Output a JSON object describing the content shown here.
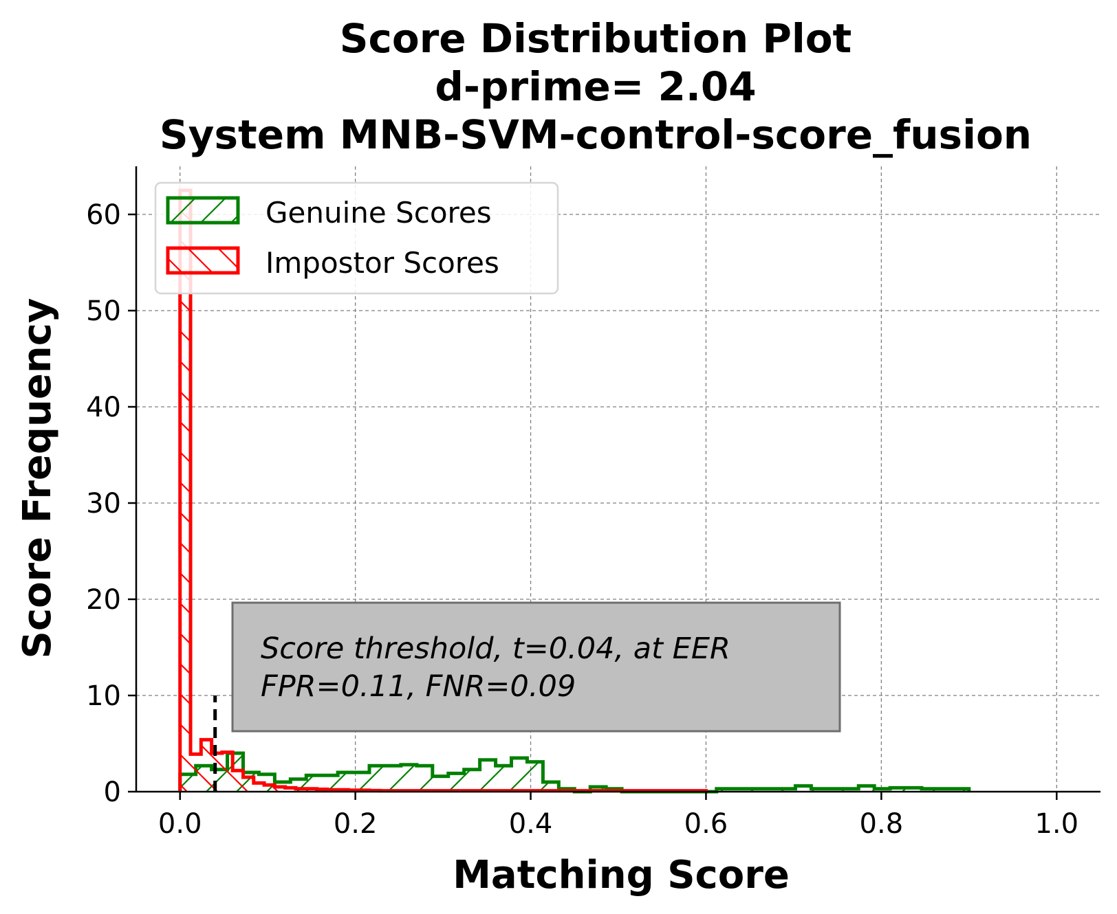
{
  "chart_data": {
    "type": "histogram",
    "title": [
      "Score Distribution Plot",
      "d-prime= 2.04",
      "System MNB-SVM-control-score_fusion"
    ],
    "xlabel": "Matching Score",
    "ylabel": "Score Frequency",
    "xlim": [
      -0.05,
      1.05
    ],
    "ylim": [
      0,
      65
    ],
    "xticks": [
      0.0,
      0.2,
      0.4,
      0.6,
      0.8,
      1.0
    ],
    "xtick_labels": [
      "0.0",
      "0.2",
      "0.4",
      "0.6",
      "0.8",
      "1.0"
    ],
    "yticks": [
      0,
      10,
      20,
      30,
      40,
      50,
      60
    ],
    "ytick_labels": [
      "0",
      "10",
      "20",
      "30",
      "40",
      "50",
      "60"
    ],
    "grid": true,
    "legend_position": "top-left",
    "series": [
      {
        "name": "Genuine Scores",
        "color": "#008000",
        "hatch": "forward-diagonal",
        "bin_edges": [
          0.0,
          0.018,
          0.036,
          0.054,
          0.072,
          0.09,
          0.108,
          0.126,
          0.144,
          0.162,
          0.18,
          0.198,
          0.216,
          0.234,
          0.252,
          0.27,
          0.288,
          0.306,
          0.324,
          0.342,
          0.36,
          0.378,
          0.396,
          0.414,
          0.432,
          0.45,
          0.468,
          0.486,
          0.504,
          0.522,
          0.54,
          0.558,
          0.576,
          0.594,
          0.612,
          0.63,
          0.648,
          0.666,
          0.684,
          0.702,
          0.72,
          0.738,
          0.756,
          0.774,
          0.792,
          0.81,
          0.828,
          0.846,
          0.864,
          0.882,
          0.9
        ],
        "values": [
          1.8,
          2.7,
          2.3,
          4.0,
          2.0,
          1.8,
          1.0,
          1.3,
          1.7,
          1.7,
          2.0,
          2.0,
          2.7,
          2.7,
          2.8,
          2.7,
          1.6,
          1.9,
          2.3,
          3.3,
          2.7,
          3.5,
          3.1,
          1.0,
          0.3,
          0.0,
          0.5,
          0.3,
          0.0,
          0.0,
          0.0,
          0.0,
          0.0,
          0.0,
          0.3,
          0.3,
          0.3,
          0.3,
          0.3,
          0.6,
          0.3,
          0.3,
          0.3,
          0.6,
          0.3,
          0.4,
          0.4,
          0.3,
          0.3,
          0.3
        ]
      },
      {
        "name": "Impostor Scores",
        "color": "#ff0000",
        "hatch": "back-diagonal",
        "bin_edges": [
          0.0,
          0.012,
          0.024,
          0.036,
          0.048,
          0.06,
          0.072,
          0.084,
          0.096,
          0.108,
          0.12,
          0.132,
          0.144,
          0.156,
          0.168,
          0.18,
          0.192,
          0.204,
          0.216,
          0.228,
          0.24,
          0.252,
          0.264,
          0.276,
          0.288,
          0.3,
          0.312,
          0.324,
          0.336,
          0.348,
          0.36,
          0.372,
          0.384,
          0.396,
          0.408,
          0.42,
          0.432,
          0.444,
          0.456,
          0.468,
          0.48,
          0.492,
          0.504,
          0.516,
          0.528,
          0.54,
          0.552,
          0.564,
          0.576,
          0.588,
          0.6
        ],
        "values": [
          62.5,
          3.9,
          5.4,
          4.0,
          4.1,
          2.2,
          1.5,
          0.9,
          0.7,
          0.5,
          0.4,
          0.3,
          0.3,
          0.25,
          0.2,
          0.2,
          0.15,
          0.15,
          0.12,
          0.1,
          0.1,
          0.1,
          0.1,
          0.1,
          0.1,
          0.1,
          0.1,
          0.1,
          0.1,
          0.1,
          0.1,
          0.1,
          0.1,
          0.1,
          0.1,
          0.1,
          0.1,
          0.1,
          0.1,
          0.1,
          0.1,
          0.1,
          0.1,
          0.1,
          0.1,
          0.1,
          0.1,
          0.1,
          0.1,
          0.1
        ]
      }
    ],
    "threshold": {
      "x": 0.04,
      "y_top": 10,
      "color": "#000000",
      "style": "dashed"
    },
    "annotation": {
      "lines": [
        "Score threshold, t=0.04, at EER",
        "FPR=0.11, FNR=0.09"
      ],
      "background": "#bfbfbf"
    }
  }
}
